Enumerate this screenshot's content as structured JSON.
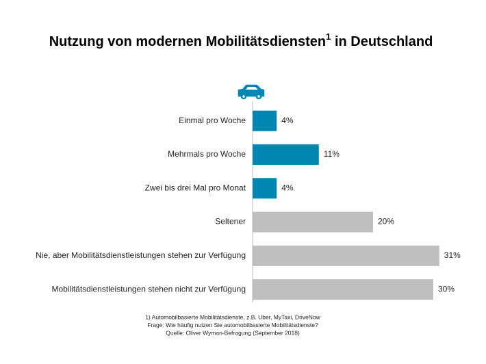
{
  "chart_data": {
    "type": "bar",
    "orientation": "horizontal",
    "title": "Nutzung von modernen Mobilitätsdiensten",
    "title_superscript": "1",
    "title_end": " in Deutschland",
    "categories": [
      "Einmal pro Woche",
      "Mehrmals pro Woche",
      "Zwei bis drei Mal pro Monat",
      "Seltener",
      "Nie, aber Mobilitätsdienstleistungen stehen zur Verfügung",
      "Mobilitätsdienstleistungen stehen nicht zur Verfügung"
    ],
    "values": [
      4,
      11,
      4,
      20,
      31,
      30
    ],
    "value_labels": [
      "4%",
      "11%",
      "4%",
      "20%",
      "31%",
      "30%"
    ],
    "colors": [
      "#0086b0",
      "#0086b0",
      "#0086b0",
      "#bfbfbf",
      "#bfbfbf",
      "#bfbfbf"
    ],
    "notes": [
      "1) Automobilbasierte Mobilitätsdienste, z.B. Uber, MyTaxi, DriveNow",
      "Frage: Wie häufig nutzen Sie automobilbasierte Mobilitätsdienste?",
      "Quelle: Oliver Wyman-Befragung (September 2018)"
    ]
  }
}
